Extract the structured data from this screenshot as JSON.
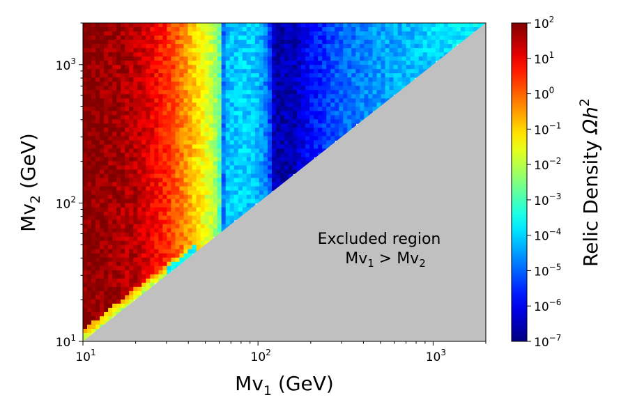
{
  "chart_data": {
    "type": "heatmap",
    "xlabel": "Mv",
    "xlabel_sub": "1",
    "xlabel_unit": "(GeV)",
    "ylabel": "Mv",
    "ylabel_sub": "2",
    "ylabel_unit": "(GeV)",
    "x_scale": "log",
    "y_scale": "log",
    "xlim": [
      10,
      2000
    ],
    "ylim": [
      10,
      2000
    ],
    "x_ticks": [
      {
        "value": 10,
        "base": "10",
        "exp": "1"
      },
      {
        "value": 100,
        "base": "10",
        "exp": "2"
      },
      {
        "value": 1000,
        "base": "10",
        "exp": "3"
      }
    ],
    "y_ticks": [
      {
        "value": 10,
        "base": "10",
        "exp": "1"
      },
      {
        "value": 100,
        "base": "10",
        "exp": "2"
      },
      {
        "value": 1000,
        "base": "10",
        "exp": "3"
      }
    ],
    "excluded_region": {
      "fill": "#c0c0c0",
      "line1": "Excluded region",
      "line2_a": "Mv",
      "line2_a_sub": "1",
      "line2_op": " > ",
      "line2_b": "Mv",
      "line2_b_sub": "2"
    },
    "colorbar": {
      "label": "Relic Density",
      "label_math": "Ωh",
      "label_exp": "2",
      "scale": "log",
      "range": [
        1e-07,
        100
      ],
      "colormap": "jet",
      "ticks": [
        {
          "value": 100,
          "base": "10",
          "exp": "2"
        },
        {
          "value": 10,
          "base": "10",
          "exp": "1"
        },
        {
          "value": 1,
          "base": "10",
          "exp": "0"
        },
        {
          "value": 0.1,
          "base": "10",
          "exp": "−1"
        },
        {
          "value": 0.01,
          "base": "10",
          "exp": "−2"
        },
        {
          "value": 0.001,
          "base": "10",
          "exp": "−3"
        },
        {
          "value": 0.0001,
          "base": "10",
          "exp": "−4"
        },
        {
          "value": 1e-05,
          "base": "10",
          "exp": "−5"
        },
        {
          "value": 1e-06,
          "base": "10",
          "exp": "−6"
        },
        {
          "value": 1e-07,
          "base": "10",
          "exp": "−7"
        }
      ]
    },
    "density_profile_vs_mv1": [
      {
        "mv1": 10,
        "log10_omega": 2.0
      },
      {
        "mv1": 20,
        "log10_omega": 1.5
      },
      {
        "mv1": 25,
        "log10_omega": 1.0
      },
      {
        "mv1": 30,
        "log10_omega": 0.5
      },
      {
        "mv1": 35,
        "log10_omega": 0.0
      },
      {
        "mv1": 42,
        "log10_omega": -0.8
      },
      {
        "mv1": 50,
        "log10_omega": -1.5
      },
      {
        "mv1": 58,
        "log10_omega": -2.2
      },
      {
        "mv1": 61,
        "log10_omega": -3.0
      },
      {
        "mv1": 63,
        "log10_omega": -5.0
      },
      {
        "mv1": 66,
        "log10_omega": -4.2
      },
      {
        "mv1": 80,
        "log10_omega": -4.0
      },
      {
        "mv1": 100,
        "log10_omega": -4.2
      },
      {
        "mv1": 115,
        "log10_omega": -5.0
      },
      {
        "mv1": 125,
        "log10_omega": -6.7
      },
      {
        "mv1": 160,
        "log10_omega": -6.5
      },
      {
        "mv1": 200,
        "log10_omega": -5.8
      },
      {
        "mv1": 300,
        "log10_omega": -5.0
      },
      {
        "mv1": 500,
        "log10_omega": -4.5
      },
      {
        "mv1": 1000,
        "log10_omega": -4.0
      },
      {
        "mv1": 2000,
        "log10_omega": -3.7
      }
    ]
  }
}
